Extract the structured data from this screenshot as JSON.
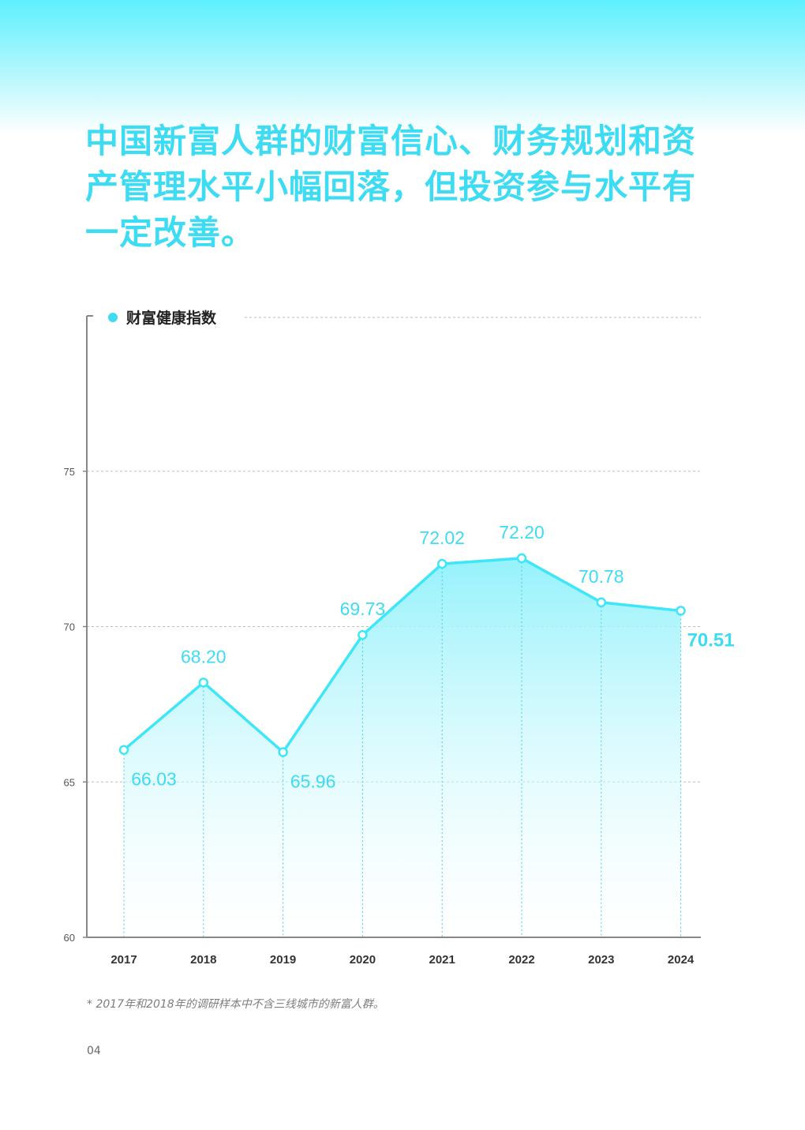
{
  "headline": "中国新富人群的财富信心、财务规划和资产管理水平小幅回落，但投资参与水平有一定改善。",
  "footnote": "* 2017年和2018年的调研样本中不含三线城市的新富人群。",
  "page_number": "04",
  "colors": {
    "accent": "#3ddcf3",
    "line": "#3ee6f8",
    "value_label": "#3ddcf3",
    "axis": "#888888",
    "grid": "#bbbbbb",
    "tick_text": "#555555",
    "year_text": "#333333"
  },
  "chart_data": {
    "type": "area",
    "legend": "财富健康指数",
    "legend_position": "top-left",
    "categories": [
      "2017",
      "2018",
      "2019",
      "2020",
      "2021",
      "2022",
      "2023",
      "2024"
    ],
    "series": [
      {
        "name": "财富健康指数",
        "values": [
          66.03,
          68.2,
          65.96,
          69.73,
          72.02,
          72.2,
          70.78,
          70.51
        ],
        "labels": [
          "66.03",
          "68.20",
          "65.96",
          "69.73",
          "72.02",
          "72.20",
          "70.78",
          "70.51"
        ]
      }
    ],
    "y_ticks": [
      "60",
      "65",
      "70",
      "75"
    ],
    "ylim": [
      60,
      80
    ],
    "grid": true,
    "highlight_last": true
  }
}
